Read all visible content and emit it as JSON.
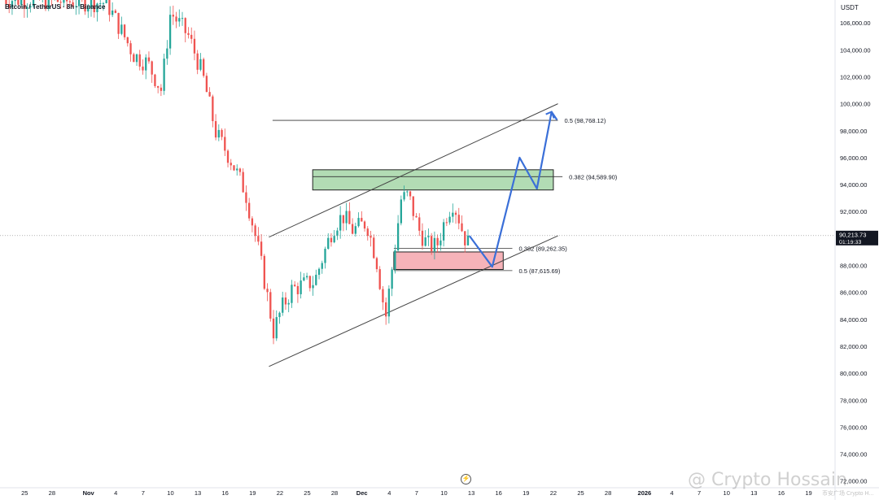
{
  "header": {
    "symbol_text": "Bitcoin / TetherUS · 8h · Binance"
  },
  "watermark": {
    "text": "@ Crypto Hossain",
    "sub": "币安广场 Crypto H..."
  },
  "icons": {
    "replay": "replay-icon",
    "watermark_logo": "binance-logo-icon"
  },
  "colors": {
    "up": "#26a69a",
    "down": "#ef5350",
    "channel": "#444444",
    "projection": "#3a6fd8",
    "resistance_zone": "#a5d6a7",
    "support_zone": "#f4a6ad",
    "price_badge": "#131722"
  },
  "chart_data": {
    "type": "candlestick",
    "title": "",
    "currency_label": "USDT",
    "y_ticks": [
      "106,000.00",
      "104,000.00",
      "102,000.00",
      "100,000.00",
      "98,000.00",
      "96,000.00",
      "94,000.00",
      "92,000.00",
      "90,000.00",
      "88,000.00",
      "86,000.00",
      "84,000.00",
      "82,000.00",
      "80,000.00",
      "78,000.00",
      "76,000.00",
      "74,000.00",
      "72,000.00"
    ],
    "y_tick_values": [
      106000,
      104000,
      102000,
      100000,
      98000,
      96000,
      94000,
      92000,
      90000,
      88000,
      86000,
      84000,
      82000,
      80000,
      78000,
      76000,
      74000,
      72000
    ],
    "ylim": [
      71500,
      107700
    ],
    "x_labels": [
      "25",
      "28",
      "Nov",
      "4",
      "7",
      "10",
      "13",
      "16",
      "19",
      "22",
      "25",
      "28",
      "Dec",
      "4",
      "7",
      "10",
      "13",
      "16",
      "19",
      "22",
      "25",
      "28",
      "2026",
      "4",
      "7",
      "10",
      "13",
      "16",
      "19"
    ],
    "x_label_days": [
      -7,
      -4,
      0,
      3,
      6,
      9,
      12,
      15,
      18,
      21,
      24,
      27,
      30,
      33,
      36,
      39,
      42,
      45,
      48,
      51,
      54,
      57,
      61,
      64,
      67,
      70,
      73,
      76,
      79
    ],
    "x_unit": "days since Nov 1 (8h candles, 3 per day)",
    "xlim": [
      -9.7,
      81.9
    ],
    "last_price": {
      "value": "90,213.73",
      "countdown": "01:19:33",
      "numeric": 90213.73
    },
    "fib_levels": [
      {
        "label": "0.5 (98,768.12)",
        "price": 98768.12
      },
      {
        "label": "0.382 (94,589.90)",
        "price": 94589.9
      },
      {
        "label": "0.382 (89,262.35)",
        "price": 89262.35
      },
      {
        "label": "0.5 (87,615.69)",
        "price": 87615.69
      }
    ],
    "zones": [
      {
        "name": "resistance",
        "top": 95100,
        "bottom": 93600,
        "start_day": 24.6,
        "end_day": 51.0
      },
      {
        "name": "support",
        "top": 89000,
        "bottom": 87700,
        "start_day": 33.5,
        "end_day": 45.5
      }
    ],
    "channel": {
      "upper": [
        [
          19.8,
          90100
        ],
        [
          51.5,
          100000
        ]
      ],
      "lower": [
        [
          19.8,
          80500
        ],
        [
          51.5,
          90200
        ]
      ]
    },
    "projection_path": [
      [
        41.8,
        90200
      ],
      [
        44.3,
        87900
      ],
      [
        47.3,
        96000
      ],
      [
        49.2,
        93700
      ],
      [
        50.8,
        99400
      ],
      [
        51.4,
        98800
      ]
    ],
    "anchors": [
      [
        -9.7,
        107800
      ],
      [
        2.0,
        107500
      ],
      [
        5.0,
        103600
      ],
      [
        6.5,
        103000
      ],
      [
        8.0,
        101000
      ],
      [
        9.0,
        106800
      ],
      [
        11.0,
        105000
      ],
      [
        12.5,
        102200
      ],
      [
        14.0,
        97800
      ],
      [
        15.5,
        96000
      ],
      [
        17.2,
        93500
      ],
      [
        18.6,
        89300
      ],
      [
        19.5,
        86200
      ],
      [
        20.3,
        83100
      ],
      [
        21.2,
        84800
      ],
      [
        22.3,
        86200
      ],
      [
        23.3,
        86500
      ],
      [
        24.8,
        86800
      ],
      [
        26.8,
        90800
      ],
      [
        27.9,
        91700
      ],
      [
        29.0,
        90600
      ],
      [
        30.5,
        91200
      ],
      [
        31.6,
        88400
      ],
      [
        32.6,
        84100
      ],
      [
        33.5,
        88800
      ],
      [
        34.3,
        92900
      ],
      [
        35.1,
        93200
      ],
      [
        36.2,
        90700
      ],
      [
        37.2,
        89500
      ],
      [
        38.2,
        89400
      ],
      [
        39.3,
        91800
      ],
      [
        40.0,
        92700
      ],
      [
        40.8,
        91200
      ],
      [
        41.2,
        90000
      ],
      [
        41.8,
        90213.73
      ]
    ]
  }
}
